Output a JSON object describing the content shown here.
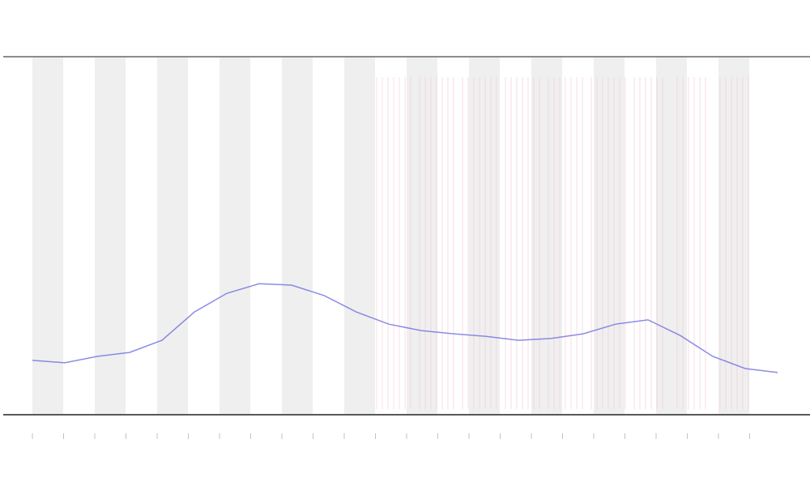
{
  "chart_data": {
    "type": "line",
    "series": [
      {
        "color": "#6f6fe0",
        "values": [
          15.2,
          14.5,
          16.3,
          17.4,
          20.8,
          28.7,
          33.9,
          36.6,
          36.2,
          33.3,
          28.7,
          25.3,
          23.5,
          22.6,
          21.9,
          20.8,
          21.3,
          22.6,
          25.3,
          26.5,
          22.1,
          16.3,
          12.9,
          11.8
        ]
      }
    ],
    "ylim": [
      0,
      100
    ]
  }
}
